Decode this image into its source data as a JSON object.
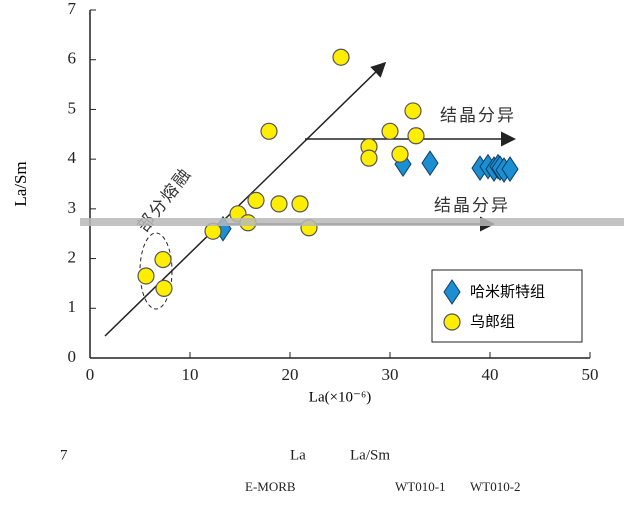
{
  "chart_data": {
    "type": "scatter",
    "x_label": "La(×10⁻⁶)",
    "y_label": "La/Sm",
    "xlim": [
      0,
      50
    ],
    "xticks": [
      0,
      10,
      20,
      30,
      40,
      50
    ],
    "ylim": [
      0,
      7
    ],
    "yticks": [
      0,
      1,
      2,
      3,
      4,
      5,
      6,
      7
    ],
    "legend": "lower right",
    "annotations": [
      "部分熔融",
      "结晶分异",
      "结晶分异"
    ],
    "series": [
      {
        "name": "哈米斯特组",
        "color": "#1b8fd2",
        "marker": "diamond",
        "x": [
          13.3,
          31.3,
          34.0,
          39.0,
          39.8,
          40.4,
          40.8,
          41.0,
          41.4,
          42.0
        ],
        "values": [
          2.6,
          3.9,
          3.92,
          3.82,
          3.85,
          3.8,
          3.85,
          3.82,
          3.78,
          3.8
        ]
      },
      {
        "name": "乌郎组",
        "color": "#ffee00",
        "marker": "circle",
        "x": [
          5.6,
          7.3,
          7.4,
          12.3,
          14.8,
          15.8,
          16.6,
          17.9,
          18.9,
          21.0,
          21.9,
          25.1,
          27.9,
          27.9,
          30.0,
          31.0,
          32.3,
          32.6
        ],
        "values": [
          1.65,
          1.98,
          1.4,
          2.55,
          2.9,
          2.72,
          3.17,
          4.56,
          3.1,
          3.1,
          2.62,
          6.05,
          4.25,
          4.02,
          4.56,
          4.1,
          4.97,
          4.47
        ]
      }
    ]
  },
  "caption": {
    "line1": [
      "7",
      "La",
      "La/Sm"
    ],
    "line2": [
      "E-MORB",
      "WT010-1",
      "WT010-2"
    ]
  }
}
